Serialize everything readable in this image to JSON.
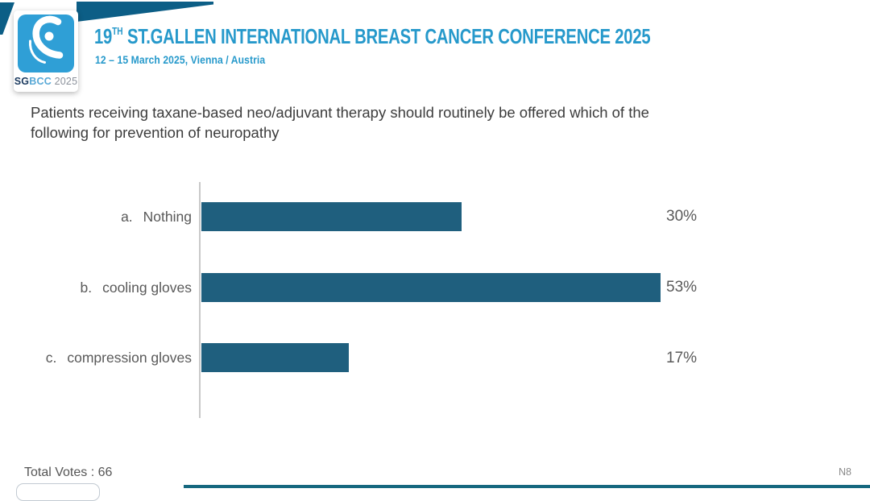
{
  "header": {
    "logo_card": {
      "sg": "SG",
      "bcc": "BCC",
      "year": "2025"
    },
    "title_num": "19",
    "title_sup": "TH",
    "title_rest": " ST.GALLEN INTERNATIONAL BREAST CANCER CONFERENCE 2025",
    "subtitle": "12 – 15 March 2025, Vienna / Austria",
    "title_color": "#2699CB",
    "banner_color": "#0C5E86",
    "logo_blue": "#2F9FD6"
  },
  "question": "Patients receiving taxane-based neo/adjuvant therapy should routinely be offered which of the following for prevention of neuropathy",
  "chart_data": {
    "type": "bar",
    "orientation": "horizontal",
    "title": "",
    "xlabel": "",
    "ylabel": "",
    "categories": [
      "Nothing",
      "cooling gloves",
      "compression gloves"
    ],
    "values": [
      30,
      53,
      17
    ],
    "value_unit": "%",
    "xlim": [
      0,
      100
    ],
    "grid": false,
    "legend": false,
    "bar_color": "#1F5F7E",
    "axis_line_color": "#C9C9C9",
    "rows": [
      {
        "letter": "a.",
        "label": "Nothing",
        "value": 30,
        "pct": "30%"
      },
      {
        "letter": "b.",
        "label": "cooling gloves",
        "value": 53,
        "pct": "53%"
      },
      {
        "letter": "c.",
        "label": "compression gloves",
        "value": 17,
        "pct": "17%"
      }
    ]
  },
  "footer": {
    "total_votes": "Total Votes : 66",
    "slide_ref": "N8"
  }
}
